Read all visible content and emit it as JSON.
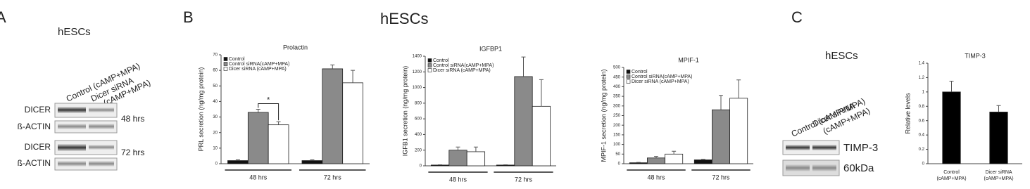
{
  "panel_a": {
    "label": "A",
    "title": "hESCs",
    "lanes": [
      [
        "Control (cAMP+MPA)"
      ],
      [
        "Dicer siRNA",
        "(cAMP+MPA)"
      ]
    ],
    "rows": [
      "DICER",
      "ß-ACTIN",
      "DICER",
      "ß-ACTIN"
    ],
    "times": [
      "48 hrs",
      "72 hrs"
    ]
  },
  "panel_b": {
    "label": "B",
    "title": "hESCs"
  },
  "panel_c": {
    "label": "C",
    "title": "hESCs",
    "lanes": [
      [
        "Control (cAMP+MPA)"
      ],
      [
        "Dicer siRNA",
        "(cAMP+MPA)"
      ]
    ],
    "bands": [
      "TIMP-3",
      "60kDa"
    ]
  },
  "chart_data": [
    {
      "type": "bar",
      "title": "Prolactin",
      "y_label": "PRL secretion (ng/mg protein)",
      "categories": [
        "48 hrs",
        "72 hrs"
      ],
      "series": [
        {
          "name": "Control",
          "color": "#111111",
          "values": [
            2,
            2
          ],
          "errors": [
            0.5,
            0.5
          ]
        },
        {
          "name": "Control siRNA(cAMP+MPA)",
          "color": "#8a8a8a",
          "values": [
            33,
            61
          ],
          "errors": [
            2,
            2.5
          ]
        },
        {
          "name": "Dicer siRNA (cAMP+MPA)",
          "color": "#ffffff",
          "values": [
            25,
            52
          ],
          "errors": [
            2,
            8
          ]
        }
      ],
      "ylim": [
        0,
        70
      ],
      "yticks": [
        0,
        10,
        20,
        30,
        40,
        50,
        60,
        70
      ],
      "legend": "upper left",
      "annotation": "*"
    },
    {
      "type": "bar",
      "title": "IGFBP1",
      "y_label": "IGFB1 secretion (ng/mg protein)",
      "categories": [
        "48 hrs",
        "72 hrs"
      ],
      "series": [
        {
          "name": "Control",
          "color": "#111111",
          "values": [
            10,
            10
          ],
          "errors": [
            3,
            3
          ]
        },
        {
          "name": "Control siRNA(cAMP+MPA)",
          "color": "#8a8a8a",
          "values": [
            200,
            1140
          ],
          "errors": [
            40,
            250
          ]
        },
        {
          "name": "Dicer siRNA (cAMP+MPA)",
          "color": "#ffffff",
          "values": [
            180,
            760
          ],
          "errors": [
            60,
            340
          ]
        }
      ],
      "ylim": [
        0,
        1400
      ],
      "yticks": [
        0,
        200,
        400,
        600,
        800,
        1000,
        1200,
        1400
      ],
      "legend": "upper left"
    },
    {
      "type": "bar",
      "title": "MPIF-1",
      "y_label": "MPIF-1 secretion (ng/mg protein)",
      "categories": [
        "48 hrs",
        "72 hrs"
      ],
      "series": [
        {
          "name": "Control",
          "color": "#111111",
          "values": [
            5,
            20
          ],
          "errors": [
            2,
            3
          ]
        },
        {
          "name": "Control siRNA(cAMP+MPA)",
          "color": "#8a8a8a",
          "values": [
            30,
            280
          ],
          "errors": [
            8,
            75
          ]
        },
        {
          "name": "Dicer siRNA (cAMP+MPA)",
          "color": "#ffffff",
          "values": [
            50,
            340
          ],
          "errors": [
            15,
            95
          ]
        }
      ],
      "ylim": [
        0,
        500
      ],
      "yticks": [
        0,
        50,
        100,
        150,
        200,
        250,
        300,
        350,
        400,
        450,
        500
      ],
      "legend": "upper left"
    },
    {
      "type": "bar",
      "title": "TIMP-3",
      "y_label": "Relative levels",
      "categories": [
        "Control (cAMP+MPA)",
        "Dicer siRNA (cAMP+MPA)"
      ],
      "series": [
        {
          "name": "TIMP-3",
          "color": "#000000",
          "values": [
            1.0,
            0.72
          ],
          "errors": [
            0.15,
            0.09
          ]
        }
      ],
      "ylim": [
        0,
        1.4
      ],
      "yticks": [
        0,
        0.2,
        0.4,
        0.6,
        0.8,
        1,
        1.2,
        1.4
      ]
    }
  ]
}
